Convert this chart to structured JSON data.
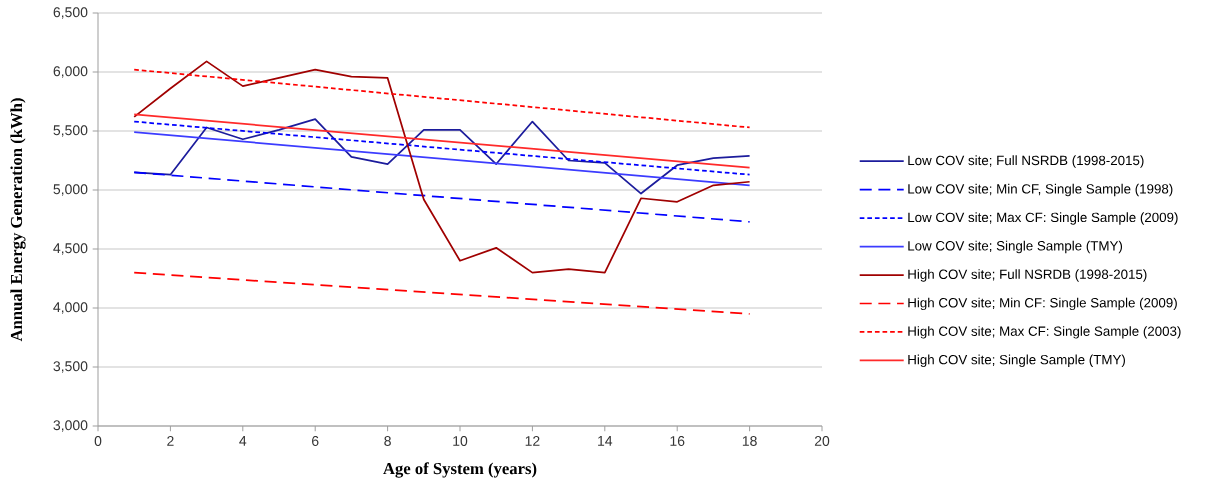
{
  "chart_data": {
    "type": "line",
    "xlabel": "Age of System (years)",
    "ylabel": "Annual Energy Generation (kWh)",
    "xlim": [
      0,
      20
    ],
    "xticks": [
      0,
      2,
      4,
      6,
      8,
      10,
      12,
      14,
      16,
      18,
      20
    ],
    "ylim": [
      3000,
      6500
    ],
    "yticks": [
      {
        "value": 3000,
        "label": "3,000"
      },
      {
        "value": 3500,
        "label": "3,500"
      },
      {
        "value": 4000,
        "label": "4,000"
      },
      {
        "value": 4500,
        "label": "4,500"
      },
      {
        "value": 5000,
        "label": "5,000"
      },
      {
        "value": 5500,
        "label": "5,500"
      },
      {
        "value": 6000,
        "label": "6,000"
      },
      {
        "value": 6500,
        "label": "6,500"
      }
    ],
    "grid": "y",
    "legend": "right",
    "marker": "none",
    "series": [
      {
        "name": "Low COV site; Full NSRDB (1998-2015)",
        "color": "#1c1c9c",
        "line_style": "solid",
        "x": [
          1,
          2,
          3,
          4,
          5,
          6,
          7,
          8,
          9,
          10,
          11,
          12,
          13,
          14,
          15,
          16,
          17,
          18
        ],
        "values": [
          5150,
          5130,
          5530,
          5430,
          5510,
          5600,
          5280,
          5220,
          5510,
          5510,
          5220,
          5580,
          5250,
          5230,
          4970,
          5210,
          5270,
          5290
        ]
      },
      {
        "name": "Low COV site; Min CF, Single Sample (1998)",
        "color": "#0000ff",
        "line_style": "dashed",
        "x": [
          1,
          18
        ],
        "values": [
          5150,
          4730
        ]
      },
      {
        "name": "Low COV site; Max CF: Single Sample (2009)",
        "color": "#0000ff",
        "line_style": "dotted",
        "x": [
          1,
          18
        ],
        "values": [
          5580,
          5130
        ]
      },
      {
        "name": "Low COV site; Single Sample (TMY)",
        "color": "#3c3cff",
        "line_style": "solid",
        "x": [
          1,
          18
        ],
        "values": [
          5490,
          5040
        ]
      },
      {
        "name": "High COV site; Full NSRDB (1998-2015)",
        "color": "#a00000",
        "line_style": "solid",
        "x": [
          1,
          2,
          3,
          4,
          5,
          6,
          7,
          8,
          9,
          10,
          11,
          12,
          13,
          14,
          15,
          16,
          17,
          18
        ],
        "values": [
          5620,
          5860,
          6090,
          5880,
          5950,
          6020,
          5960,
          5950,
          4920,
          4400,
          4510,
          4300,
          4330,
          4300,
          4930,
          4900,
          5040,
          5070
        ]
      },
      {
        "name": "High COV site; Min CF: Single Sample (2009)",
        "color": "#ff0000",
        "line_style": "dashed",
        "x": [
          1,
          18
        ],
        "values": [
          4300,
          3950
        ]
      },
      {
        "name": "High COV site; Max CF: Single Sample (2003)",
        "color": "#ff0000",
        "line_style": "dotted",
        "x": [
          1,
          18
        ],
        "values": [
          6020,
          5530
        ]
      },
      {
        "name": "High COV site; Single Sample (TMY)",
        "color": "#ff2a2a",
        "line_style": "solid",
        "x": [
          1,
          18
        ],
        "values": [
          5640,
          5190
        ]
      }
    ]
  }
}
